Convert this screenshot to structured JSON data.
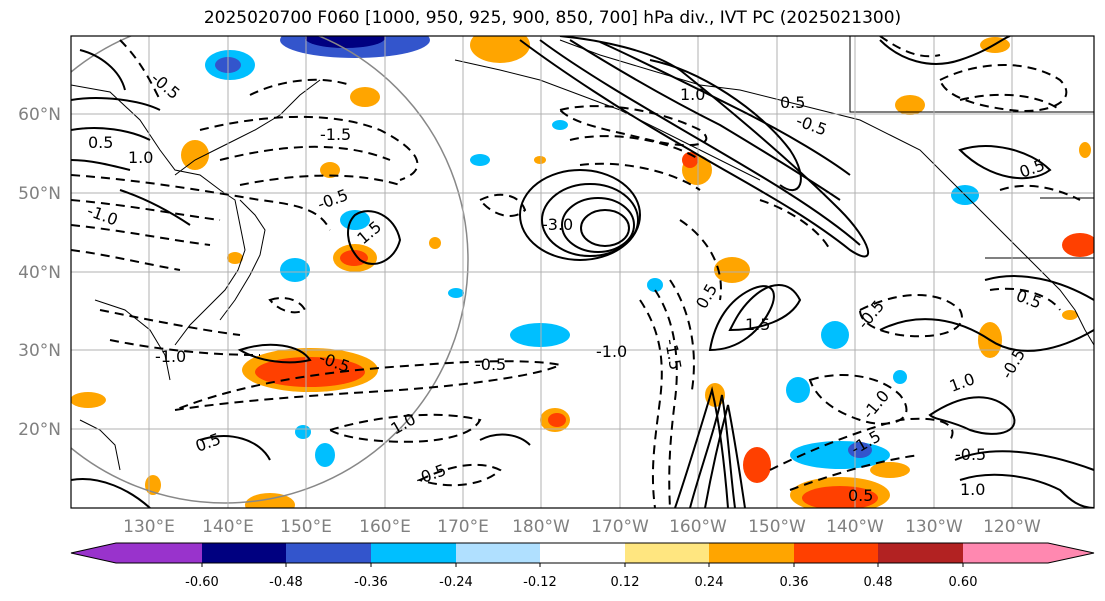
{
  "title": "2025020700 F060 [1000, 950, 925, 900, 850, 700] hPa div., IVT PC (2025021300)",
  "map": {
    "lat_labels": [
      "60°N",
      "50°N",
      "40°N",
      "30°N",
      "20°N"
    ],
    "lon_labels": [
      "130°E",
      "140°E",
      "150°E",
      "160°E",
      "170°E",
      "180°W",
      "170°W",
      "160°W",
      "150°W",
      "140°W",
      "130°W",
      "120°W"
    ],
    "contour_labels": [
      "-0.5",
      "1.0",
      "-0.5",
      "-1.0",
      "0.5",
      "-0.5",
      "1.5",
      "0.5",
      "-3.0",
      "-1.0",
      "1.0",
      "-1.5",
      "-1.0",
      "-0.5",
      "-0.5",
      "0.5",
      "1.0",
      "-0.5",
      "0.5",
      "-0.5",
      "-1.5",
      "-1.5",
      "1.5",
      "0.5",
      "-0.5",
      "0.5",
      "1.0",
      "-1.0",
      "-0.5",
      "0.5",
      "1.0"
    ],
    "circle_color": "#888888"
  },
  "colorbar": {
    "ticks": [
      "-0.60",
      "-0.48",
      "-0.36",
      "-0.24",
      "-0.12",
      "0.12",
      "0.24",
      "0.36",
      "0.48",
      "0.60"
    ],
    "colors": [
      "#9933cc",
      "#000080",
      "#3355cc",
      "#00bfff",
      "#b0e0ff",
      "#ffffff",
      "#ffe680",
      "#ffa500",
      "#ff4000",
      "#b22222",
      "#ff88b0"
    ]
  }
}
